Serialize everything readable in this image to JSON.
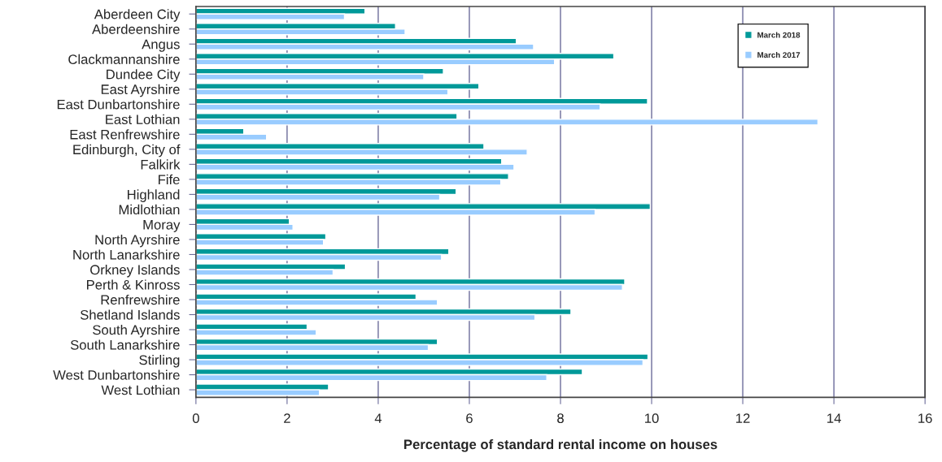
{
  "chart_data": {
    "type": "bar",
    "orientation": "horizontal",
    "xlabel": "Percentage of standard rental income on houses",
    "categories": [
      "Aberdeen City",
      "Aberdeenshire",
      "Angus",
      "Clackmannanshire",
      "Dundee City",
      "East Ayrshire",
      "East Dunbartonshire",
      "East Lothian",
      "East Renfrewshire",
      "Edinburgh, City of",
      "Falkirk",
      "Fife",
      "Highland",
      "Midlothian",
      "Moray",
      "North Ayrshire",
      "North Lanarkshire",
      "Orkney Islands",
      "Perth & Kinross",
      "Renfrewshire",
      "Shetland Islands",
      "South Ayrshire",
      "South Lanarkshire",
      "Stirling",
      "West Dunbartonshire",
      "West Lothian"
    ],
    "series": [
      {
        "name": "March 2018",
        "color": "#009999",
        "values": [
          3.71,
          4.38,
          7.03,
          9.17,
          5.43,
          6.21,
          9.91,
          5.73,
          1.05,
          6.32,
          6.71,
          6.86,
          5.71,
          9.97,
          2.05,
          2.85,
          5.55,
          3.28,
          9.41,
          4.83,
          8.23,
          2.44,
          5.3,
          9.92,
          8.48,
          2.91
        ]
      },
      {
        "name": "March 2017",
        "color": "#99ccff",
        "values": [
          3.26,
          4.59,
          7.41,
          7.87,
          5.0,
          5.53,
          8.87,
          13.65,
          1.55,
          7.27,
          6.98,
          6.69,
          5.35,
          8.76,
          2.13,
          2.8,
          5.39,
          3.01,
          9.36,
          5.3,
          7.44,
          2.64,
          5.1,
          9.81,
          7.7,
          2.71
        ]
      }
    ],
    "xlim": [
      0,
      16
    ],
    "xticks": [
      0,
      2,
      4,
      6,
      8,
      10,
      12,
      14,
      16
    ],
    "grid": "x",
    "legend": "top right"
  }
}
